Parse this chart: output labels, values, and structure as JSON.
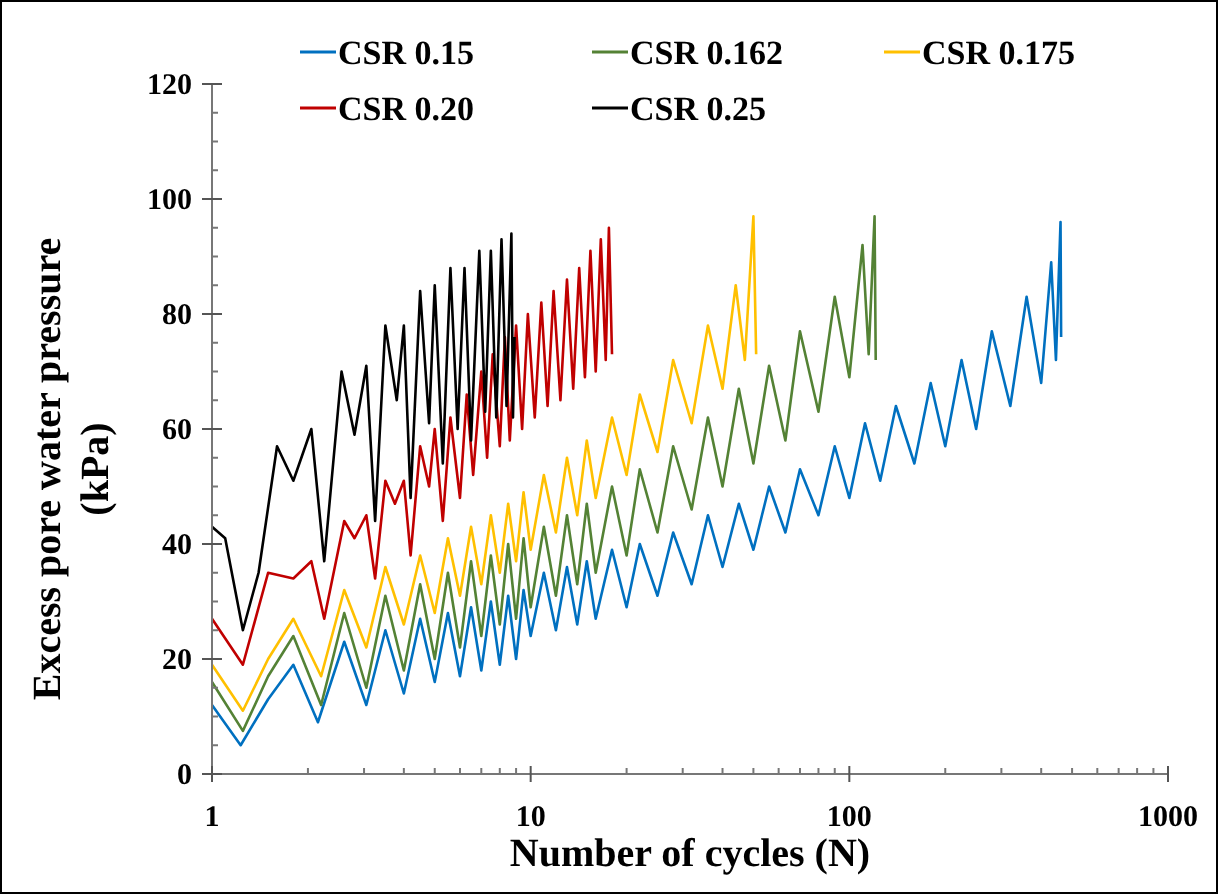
{
  "chart_data": {
    "type": "line",
    "xlabel": "Number of cycles (N)",
    "ylabel": "Excess pore water pressure\n(kPa)",
    "log": "x",
    "xlim": [
      1,
      1000
    ],
    "xticks": [
      1,
      10,
      100,
      1000
    ],
    "ylim": [
      0,
      120
    ],
    "yticks": [
      0,
      20,
      40,
      60,
      80,
      100,
      120
    ],
    "grid": false,
    "legend": "top",
    "marker": "none",
    "line_style": "solid",
    "series": [
      {
        "name": "CSR 0.15",
        "color": "#0070c0",
        "x": [
          1,
          1.23,
          1.5,
          1.8,
          2.15,
          2.6,
          3.05,
          3.5,
          4,
          4.5,
          5,
          5.5,
          6,
          6.5,
          7,
          7.5,
          8,
          8.5,
          9,
          9.5,
          10,
          11,
          12,
          13,
          14,
          15,
          16,
          18,
          20,
          22,
          25,
          28,
          32,
          36,
          40,
          45,
          50,
          56,
          63,
          70,
          80,
          90,
          100,
          112,
          125,
          140,
          160,
          180,
          200,
          225,
          250,
          280,
          320,
          360,
          400,
          430,
          445,
          460,
          462
        ],
        "values": [
          12,
          5,
          13,
          19,
          9,
          23,
          12,
          25,
          14,
          27,
          16,
          28,
          17,
          29,
          18,
          30,
          19,
          31,
          20,
          32,
          24,
          35,
          25,
          36,
          26,
          37,
          27,
          39,
          29,
          40,
          31,
          42,
          33,
          45,
          36,
          47,
          39,
          50,
          42,
          53,
          45,
          57,
          48,
          61,
          51,
          64,
          54,
          68,
          57,
          72,
          60,
          77,
          64,
          83,
          68,
          89,
          72,
          96,
          76
        ]
      },
      {
        "name": "CSR 0.162",
        "color": "#548235",
        "x": [
          1,
          1.25,
          1.5,
          1.8,
          2.2,
          2.6,
          3.05,
          3.5,
          4,
          4.5,
          5,
          5.5,
          6,
          6.5,
          7,
          7.5,
          8,
          8.5,
          9,
          9.5,
          10,
          11,
          12,
          13,
          14,
          15,
          16,
          18,
          20,
          22,
          25,
          28,
          32,
          36,
          40,
          45,
          50,
          56,
          63,
          70,
          80,
          90,
          100,
          110,
          115,
          120,
          121
        ],
        "values": [
          16,
          7.5,
          17,
          24,
          12,
          28,
          15,
          31,
          18,
          33,
          20,
          35,
          22,
          37,
          24,
          38,
          26,
          40,
          27,
          41,
          29,
          43,
          31,
          45,
          33,
          47,
          35,
          50,
          38,
          53,
          42,
          57,
          46,
          62,
          50,
          67,
          54,
          71,
          58,
          77,
          63,
          83,
          69,
          92,
          73,
          97,
          72
        ]
      },
      {
        "name": "CSR 0.175",
        "color": "#ffc000",
        "x": [
          1,
          1.25,
          1.5,
          1.8,
          2.2,
          2.6,
          3.05,
          3.5,
          4,
          4.5,
          5,
          5.5,
          6,
          6.5,
          7,
          7.5,
          8,
          8.5,
          9,
          9.5,
          10,
          11,
          12,
          13,
          14,
          15,
          16,
          18,
          20,
          22,
          25,
          28,
          32,
          36,
          40,
          44,
          47,
          50,
          51
        ],
        "values": [
          19,
          11,
          20,
          27,
          17,
          32,
          22,
          36,
          26,
          38,
          28,
          41,
          31,
          43,
          33,
          45,
          35,
          47,
          37,
          49,
          39,
          52,
          42,
          55,
          45,
          58,
          48,
          62,
          52,
          66,
          56,
          72,
          61,
          78,
          67,
          85,
          72,
          97,
          73
        ]
      },
      {
        "name": "CSR 0.20",
        "color": "#c00000",
        "x": [
          1,
          1.25,
          1.5,
          1.8,
          2.05,
          2.25,
          2.6,
          2.8,
          3.05,
          3.25,
          3.5,
          3.75,
          4,
          4.2,
          4.5,
          4.8,
          5,
          5.3,
          5.6,
          6,
          6.3,
          6.6,
          7,
          7.3,
          7.6,
          8,
          8.3,
          8.6,
          9,
          9.4,
          9.8,
          10.3,
          10.8,
          11.3,
          11.8,
          12.4,
          13,
          13.6,
          14.2,
          14.8,
          15.4,
          16,
          16.6,
          17.2,
          17.6,
          18
        ],
        "values": [
          27,
          19,
          35,
          34,
          37,
          27,
          44,
          41,
          45,
          34,
          51,
          47,
          51,
          38,
          57,
          50,
          60,
          44,
          62,
          48,
          66,
          52,
          70,
          55,
          73,
          57,
          76,
          58,
          78,
          60,
          80,
          62,
          82,
          64,
          84,
          65,
          86,
          67,
          88,
          69,
          91,
          70,
          93,
          72,
          95,
          73
        ]
      },
      {
        "name": "CSR 0.25",
        "color": "#000000",
        "x": [
          1,
          1.1,
          1.25,
          1.4,
          1.6,
          1.8,
          2.05,
          2.25,
          2.55,
          2.8,
          3.05,
          3.25,
          3.5,
          3.8,
          4,
          4.2,
          4.5,
          4.8,
          5,
          5.3,
          5.6,
          5.9,
          6.2,
          6.5,
          6.9,
          7.2,
          7.5,
          7.8,
          8.1,
          8.4,
          8.7,
          8.8,
          8.9
        ],
        "values": [
          43,
          41,
          25,
          35,
          57,
          51,
          60,
          37,
          70,
          59,
          71,
          44,
          78,
          65,
          78,
          48,
          84,
          61,
          85,
          54,
          88,
          60,
          88,
          58,
          91,
          63,
          91,
          62,
          93,
          64,
          94,
          62,
          76
        ]
      }
    ]
  }
}
